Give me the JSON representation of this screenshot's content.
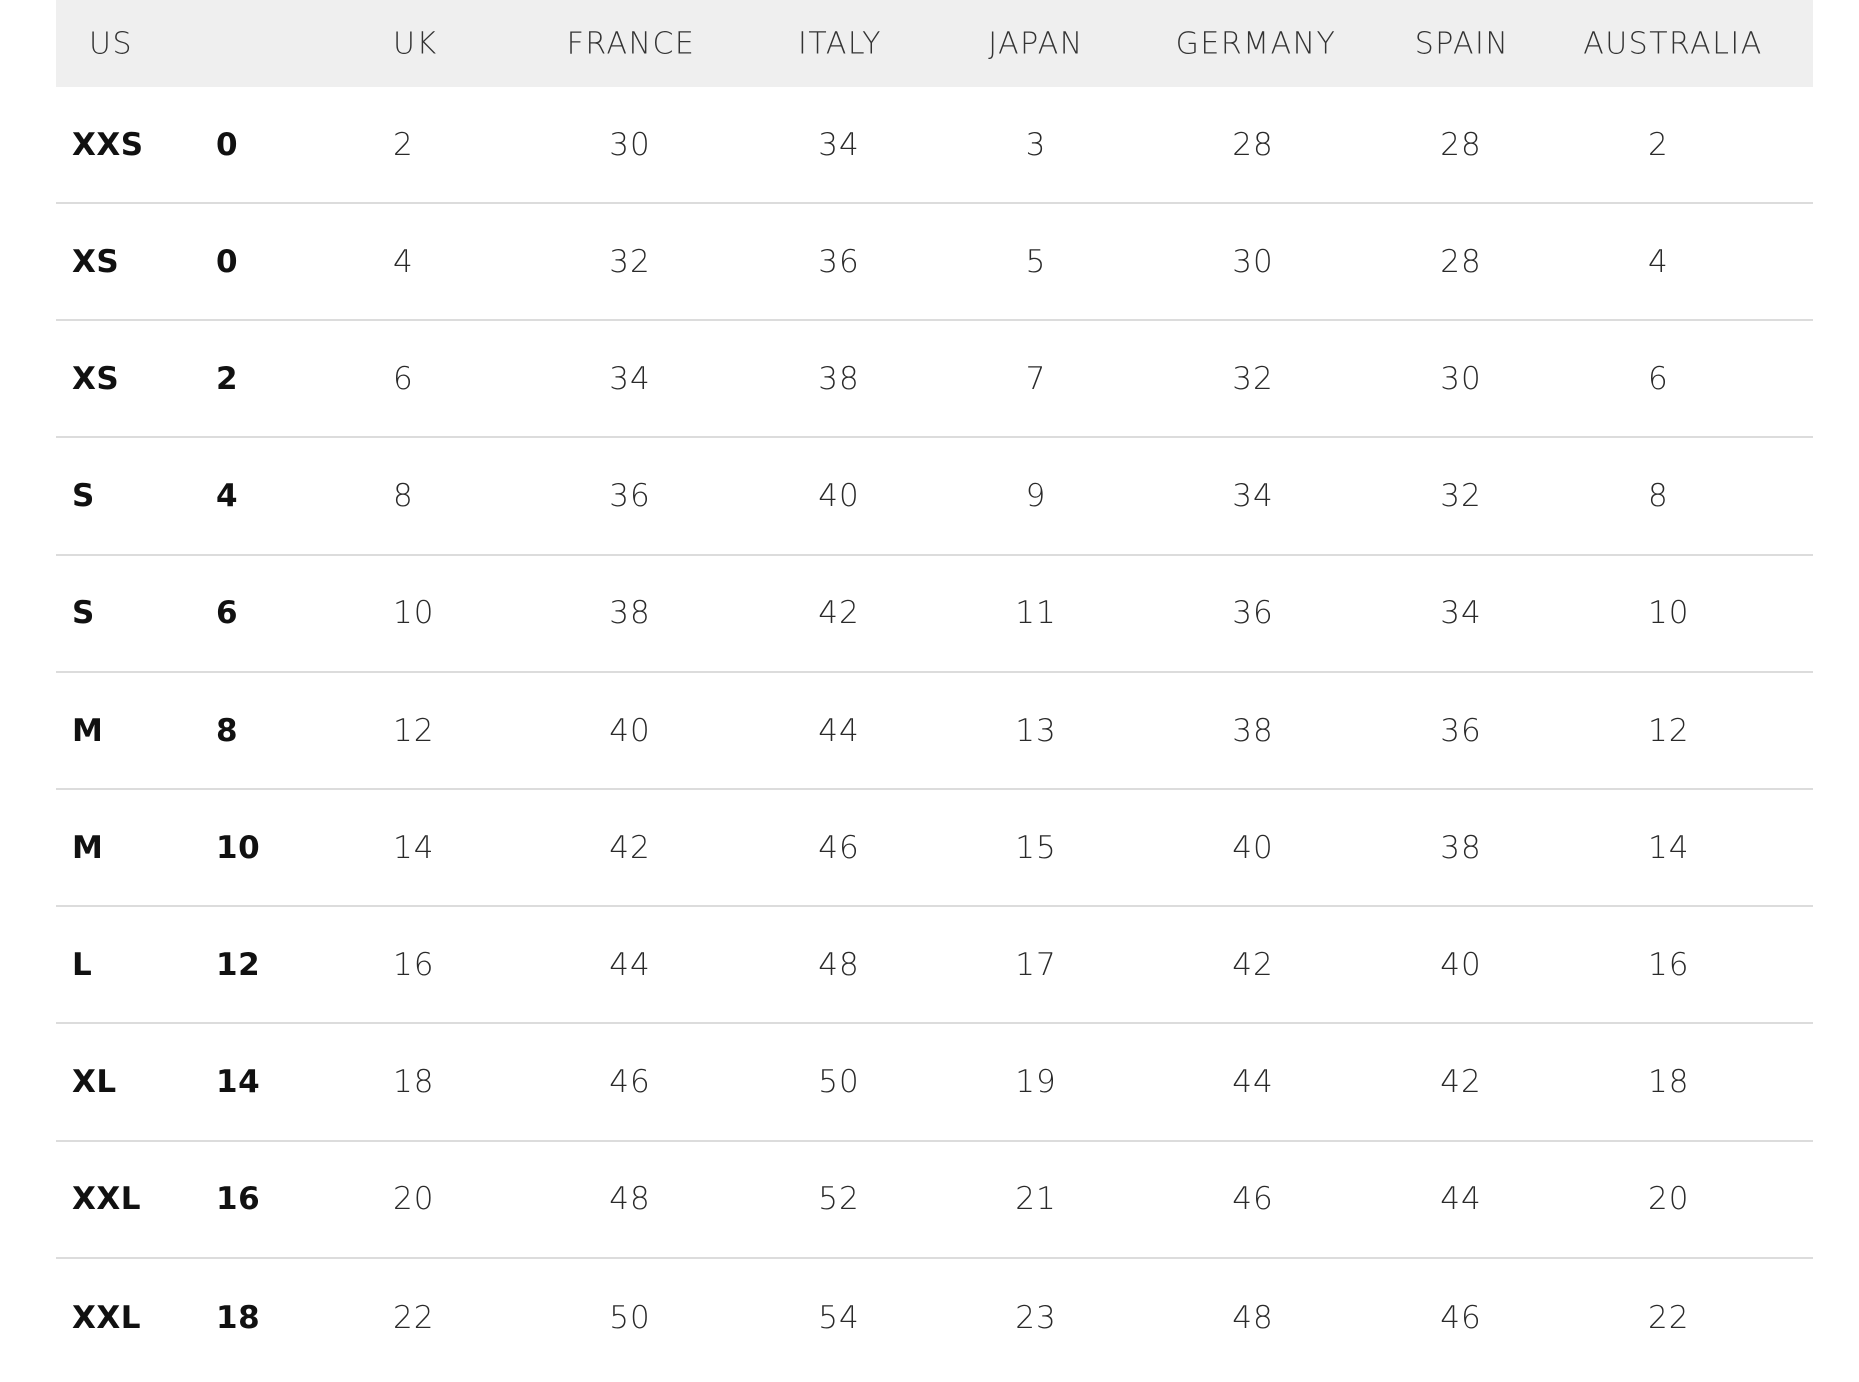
{
  "headers": [
    "US",
    "UK",
    "FRANCE",
    "ITALY",
    "JAPAN",
    "GERMANY",
    "SPAIN",
    "AUSTRALIA"
  ],
  "rows": [
    [
      "XXS",
      "0",
      "2",
      "30",
      "34",
      "3",
      "28",
      "28",
      "2"
    ],
    [
      "XS",
      "0",
      "4",
      "32",
      "36",
      "5",
      "30",
      "28",
      "4"
    ],
    [
      "XS",
      "2",
      "6",
      "34",
      "38",
      "7",
      "32",
      "30",
      "6"
    ],
    [
      "S",
      "4",
      "8",
      "36",
      "40",
      "9",
      "34",
      "32",
      "8"
    ],
    [
      "S",
      "6",
      "10",
      "38",
      "42",
      "11",
      "36",
      "34",
      "10"
    ],
    [
      "M",
      "8",
      "12",
      "40",
      "44",
      "13",
      "38",
      "36",
      "12"
    ],
    [
      "M",
      "10",
      "14",
      "42",
      "46",
      "15",
      "40",
      "38",
      "14"
    ],
    [
      "L",
      "12",
      "16",
      "44",
      "48",
      "17",
      "42",
      "40",
      "16"
    ],
    [
      "XL",
      "14",
      "18",
      "46",
      "50",
      "19",
      "44",
      "42",
      "18"
    ],
    [
      "XXL",
      "16",
      "20",
      "48",
      "52",
      "21",
      "46",
      "44",
      "20"
    ],
    [
      "XXL",
      "18",
      "22",
      "50",
      "54",
      "23",
      "48",
      "46",
      "22"
    ]
  ],
  "colors": {
    "header_bg": "#efefef",
    "divider": "#dcdcdc"
  }
}
